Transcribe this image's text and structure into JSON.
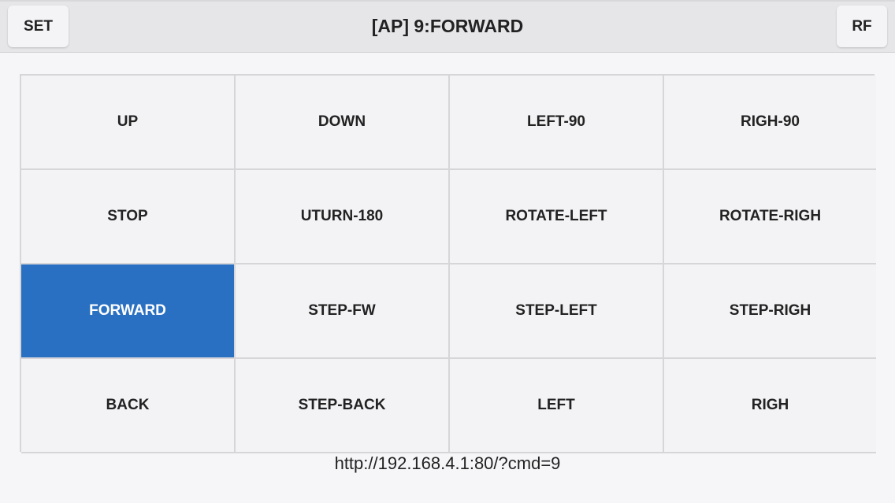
{
  "header": {
    "title": "[AP] 9:FORWARD",
    "left_button": "SET",
    "right_button": "RF"
  },
  "accent_color": "#2a70c2",
  "grid": {
    "active": "FORWARD",
    "buttons": [
      "UP",
      "DOWN",
      "LEFT-90",
      "RIGH-90",
      "STOP",
      "UTURN-180",
      "ROTATE-LEFT",
      "ROTATE-RIGH",
      "FORWARD",
      "STEP-FW",
      "STEP-LEFT",
      "STEP-RIGH",
      "BACK",
      "STEP-BACK",
      "LEFT",
      "RIGH"
    ]
  },
  "status_url": "http://192.168.4.1:80/?cmd=9"
}
